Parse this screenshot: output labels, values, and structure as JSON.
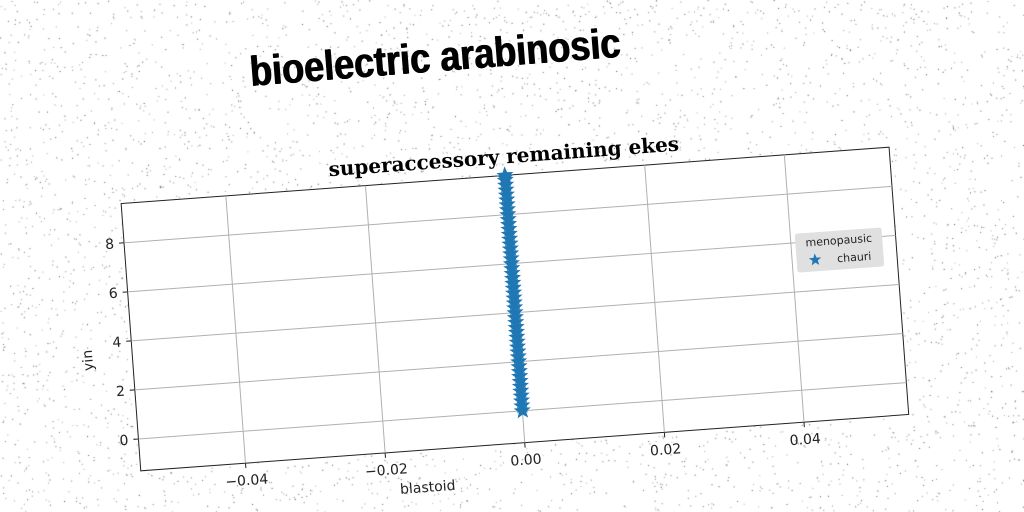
{
  "main_title": "bioelectric arabinosic",
  "chart_data": {
    "type": "scatter",
    "title": "superaccessory remaining ekes",
    "xlabel": "blastoid",
    "ylabel": "yin",
    "xlim": [
      -0.055,
      0.055
    ],
    "ylim": [
      -1.3,
      9.6
    ],
    "xticks": [
      -0.04,
      -0.02,
      0.0,
      0.02,
      0.04
    ],
    "xtick_labels": [
      "−0.04",
      "−0.02",
      "0.00",
      "0.02",
      "0.04"
    ],
    "yticks": [
      0,
      2,
      4,
      6,
      8
    ],
    "ytick_labels": [
      "0",
      "2",
      "4",
      "6",
      "8"
    ],
    "grid": true,
    "legend": {
      "title": "menopausic",
      "placement": "right",
      "entries": [
        "chauri"
      ]
    },
    "series": [
      {
        "name": "chauri",
        "marker": "star",
        "color": "#1f77b4",
        "x": [
          0,
          0,
          0,
          0,
          0,
          0,
          0,
          0,
          0,
          0,
          0,
          0,
          0,
          0,
          0,
          0,
          0,
          0,
          0,
          0,
          0,
          0,
          0,
          0,
          0,
          0,
          0,
          0,
          0,
          0,
          0,
          0,
          0,
          0,
          0,
          0,
          0,
          0,
          0,
          0,
          0,
          0,
          0,
          0,
          0,
          0,
          0,
          0,
          0,
          0
        ],
        "y": [
          0.0,
          0.2,
          0.4,
          0.6,
          0.8,
          1.0,
          1.2,
          1.4,
          1.6,
          1.8,
          2.0,
          2.2,
          2.4,
          2.6,
          2.8,
          3.0,
          3.2,
          3.4,
          3.6,
          3.8,
          4.0,
          4.2,
          4.4,
          4.6,
          4.8,
          5.0,
          5.2,
          5.4,
          5.6,
          5.8,
          6.0,
          6.2,
          6.4,
          6.6,
          6.8,
          7.0,
          7.2,
          7.4,
          7.6,
          7.8,
          8.0,
          8.2,
          8.4,
          8.6,
          8.8,
          9.0,
          9.2,
          9.4,
          9.5,
          9.6
        ]
      }
    ]
  }
}
